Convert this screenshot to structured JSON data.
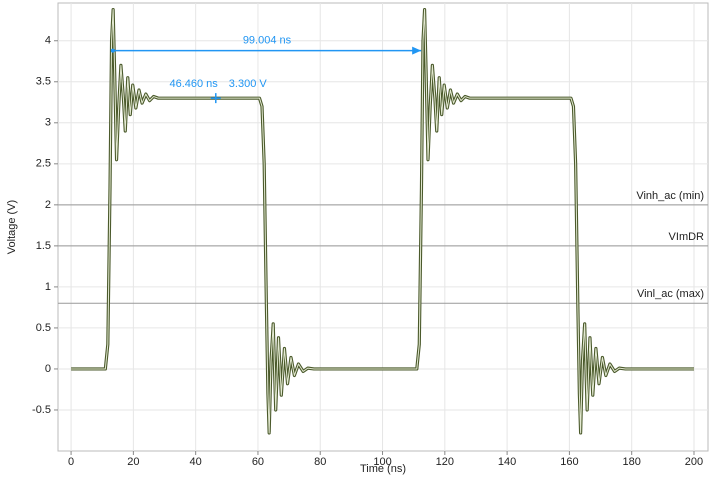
{
  "chart_data": {
    "type": "line",
    "x_label": "Time (ns)",
    "y_label": "Voltage (V)",
    "xlim": [
      -4.2,
      204.5
    ],
    "ylim": [
      -1,
      4.46
    ],
    "xticks": [
      0,
      20,
      40,
      60,
      80,
      100,
      120,
      140,
      160,
      180,
      200
    ],
    "yticks": [
      -0.5,
      0,
      0.5,
      1,
      1.5,
      2,
      2.5,
      3,
      3.5,
      4
    ],
    "grid": true,
    "x": [
      0,
      11,
      11.8,
      12.5,
      13.0,
      13.5,
      14.0,
      14.6,
      15.3,
      16.0,
      16.8,
      17.4,
      18.2,
      19.0,
      19.8,
      20.8,
      21.8,
      22.8,
      24,
      25.2,
      26.5,
      28,
      60.5,
      61.3,
      62,
      62.7,
      63.2,
      63.6,
      64.2,
      64.9,
      65.7,
      66.6,
      67.5,
      68.5,
      69.5,
      70.6,
      71.7,
      73,
      74.5,
      76,
      78,
      111,
      111.8,
      112.5,
      113.0,
      113.5,
      114.0,
      114.6,
      115.3,
      116.0,
      116.8,
      117.4,
      118.2,
      119.0,
      119.8,
      120.8,
      121.8,
      122.8,
      124,
      125.2,
      126.5,
      128,
      160.5,
      161.3,
      162,
      162.7,
      163.2,
      163.6,
      164.2,
      164.9,
      165.7,
      166.6,
      167.5,
      168.5,
      169.5,
      170.6,
      171.7,
      173,
      174.5,
      176,
      178,
      200
    ],
    "series": [
      {
        "color": "#4b5a2c",
        "values": [
          0,
          0,
          0.3,
          2.2,
          4.0,
          4.38,
          3.6,
          2.55,
          3.2,
          3.7,
          3.3,
          2.9,
          3.55,
          3.1,
          3.46,
          3.18,
          3.4,
          3.24,
          3.35,
          3.27,
          3.32,
          3.3,
          3.3,
          3.2,
          2.5,
          0.8,
          -0.3,
          -0.78,
          0.1,
          0.55,
          -0.5,
          0.38,
          -0.32,
          0.25,
          -0.18,
          0.14,
          -0.08,
          0.06,
          -0.03,
          0.01,
          0,
          0,
          0.3,
          2.2,
          4.0,
          4.38,
          3.6,
          2.55,
          3.2,
          3.7,
          3.3,
          2.9,
          3.55,
          3.1,
          3.46,
          3.18,
          3.4,
          3.24,
          3.35,
          3.27,
          3.32,
          3.3,
          3.3,
          3.2,
          2.5,
          0.8,
          -0.3,
          -0.78,
          0.1,
          0.55,
          -0.5,
          0.38,
          -0.32,
          0.25,
          -0.18,
          0.14,
          -0.08,
          0.06,
          -0.03,
          0.01,
          0,
          0
        ]
      }
    ],
    "reference_lines": [
      {
        "value": 2,
        "label": "Vinh_ac (min)"
      },
      {
        "value": 1.5,
        "label": "VImDR"
      },
      {
        "value": 0.8,
        "label": "Vinl_ac (max)"
      }
    ],
    "cursor": {
      "x": 46.46,
      "y": 3.3,
      "x_label": "46.460 ns",
      "y_label": "3.300 V"
    },
    "measurement": {
      "x_start": 13.4,
      "x_end": 112.404,
      "y": 3.88,
      "label": "99.004 ns"
    }
  }
}
